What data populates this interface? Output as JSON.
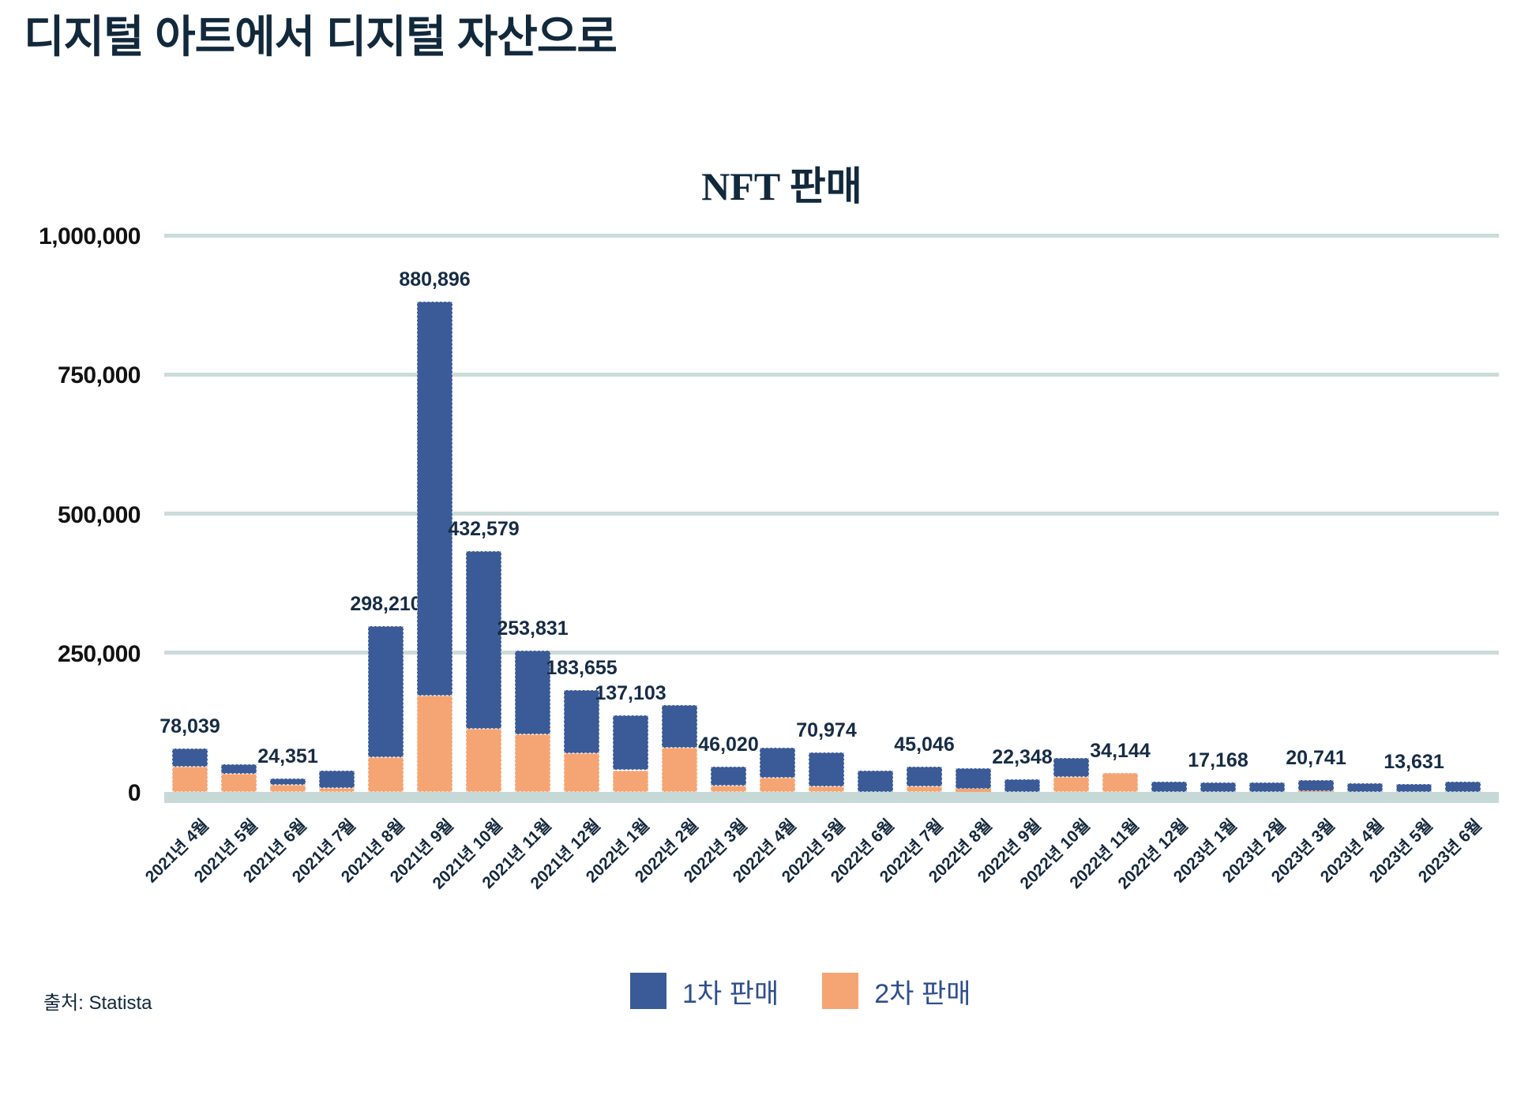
{
  "page": {
    "title": "디지털 아트에서 디지털 자산으로",
    "source": "출처: Statista"
  },
  "legend": {
    "items": [
      {
        "label": "1차 판매",
        "color": "#3a5b97"
      },
      {
        "label": "2차 판매",
        "color": "#f5a573"
      }
    ]
  },
  "colors": {
    "primary_bar": "#3a5b97",
    "secondary_bar": "#f5a573",
    "gridline": "#cbdcda",
    "title_text": "#12293c",
    "value_label_text": "#162c45",
    "legend_text": "#2e4e8e"
  },
  "chart_data": {
    "type": "bar",
    "stacked": true,
    "title": "NFT 판매",
    "xlabel": "",
    "ylabel": "",
    "legend_position": "bottom",
    "grid": true,
    "ylim": [
      0,
      1000000
    ],
    "categories": [
      "2021년 4월",
      "2021년 5월",
      "2021년 6월",
      "2021년 7월",
      "2021년 8월",
      "2021년 9월",
      "2021년 10월",
      "2021년 11월",
      "2021년 12월",
      "2022년 1월",
      "2022년 2월",
      "2022년 3월",
      "2022년 4월",
      "2022년 5월",
      "2022년 6월",
      "2022년 7월",
      "2022년 8월",
      "2022년 9월",
      "2022년 10월",
      "2022년 11월",
      "2022년 12월",
      "2023년 1월",
      "2023년 2월",
      "2023년 3월",
      "2023년 4월",
      "2023년 5월",
      "2023년 6월"
    ],
    "series": [
      {
        "name": "1차 판매",
        "role": "primary",
        "color": "#3a5b97",
        "values": [
          33039,
          16000,
          11351,
          31000,
          236210,
          707896,
          318579,
          150831,
          114655,
          98103,
          77000,
          35020,
          54000,
          60974,
          38000,
          35046,
          38000,
          22348,
          34000,
          0,
          18000,
          17168,
          17000,
          18741,
          16000,
          13631,
          19000
        ]
      },
      {
        "name": "2차 판매",
        "role": "secondary",
        "color": "#f5a573",
        "values": [
          45000,
          33000,
          13000,
          7000,
          62000,
          173000,
          114000,
          103000,
          69000,
          39000,
          79000,
          11000,
          25000,
          10000,
          0,
          10000,
          5000,
          0,
          27000,
          34144,
          0,
          0,
          0,
          2000,
          0,
          0,
          0
        ]
      }
    ],
    "stack_bottom_to_top": [
      "2차 판매",
      "1차 판매"
    ],
    "totals": [
      78039,
      49000,
      24351,
      38000,
      298210,
      880896,
      432579,
      253831,
      183655,
      137103,
      156000,
      46020,
      79000,
      70974,
      38000,
      45046,
      43000,
      22348,
      61000,
      34144,
      18000,
      17168,
      17000,
      20741,
      16000,
      13631,
      19000
    ],
    "data_labels": [
      "78,039",
      null,
      "24,351",
      null,
      "298,210",
      "880,896",
      "432,579",
      "253,831",
      "183,655",
      "137,103",
      null,
      "46,020",
      null,
      "70,974",
      null,
      "45,046",
      null,
      "22,348",
      null,
      "34,144",
      null,
      "17,168",
      null,
      "20,741",
      null,
      "13,631",
      null
    ],
    "y_axis": {
      "tick_values": [
        0,
        250000,
        500000,
        750000,
        1000000
      ],
      "ticks": [
        "0",
        "250,000",
        "500,000",
        "750,000",
        "1,000,000"
      ]
    }
  }
}
